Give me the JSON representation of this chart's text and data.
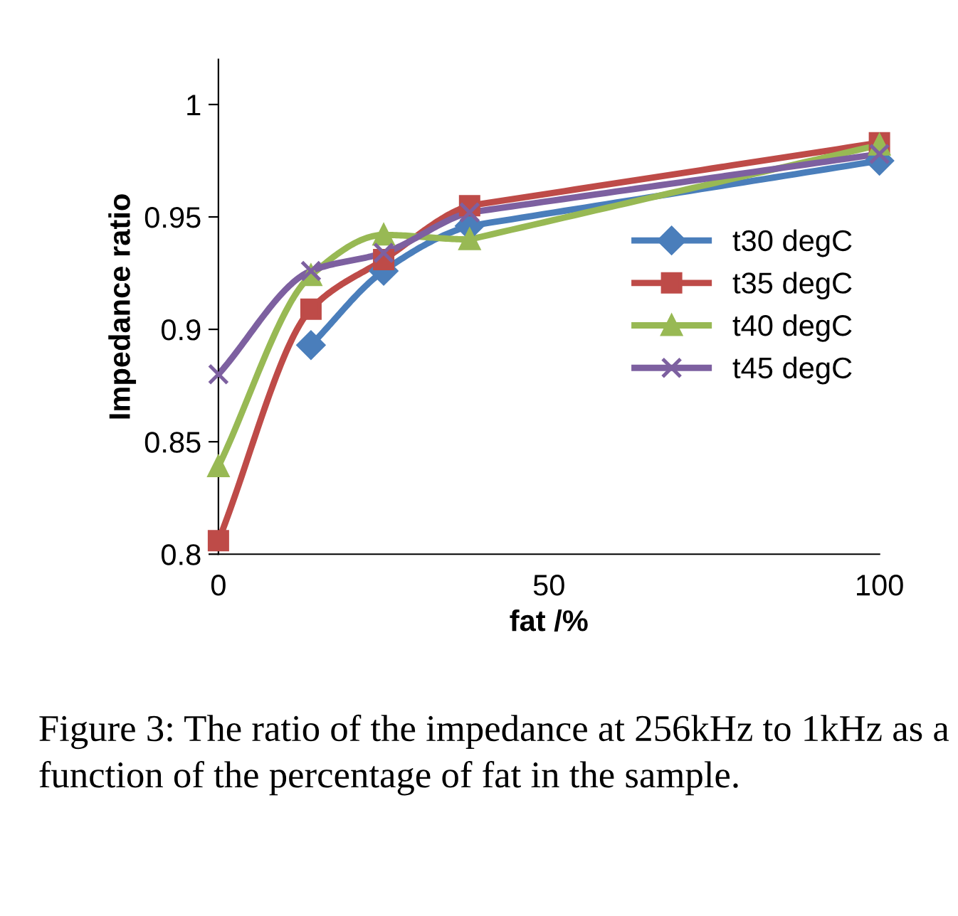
{
  "chart_data": {
    "type": "line",
    "xlabel": "fat /%",
    "ylabel": "Impedance ratio",
    "x": [
      0,
      14,
      25,
      38,
      100
    ],
    "series": [
      {
        "name": "t30 degC",
        "color": "#4a7ebb",
        "marker": "diamond",
        "values": [
          null,
          0.893,
          0.926,
          0.946,
          0.975
        ]
      },
      {
        "name": "t35 degC",
        "color": "#be4b48",
        "marker": "square",
        "values": [
          0.806,
          0.909,
          0.931,
          0.955,
          0.983
        ]
      },
      {
        "name": "t40 degC",
        "color": "#98b954",
        "marker": "triangle",
        "values": [
          0.839,
          0.924,
          0.942,
          0.94,
          0.982
        ]
      },
      {
        "name": "t45 degC",
        "color": "#7d60a0",
        "marker": "cross",
        "values": [
          0.88,
          0.926,
          0.934,
          0.952,
          0.978
        ]
      }
    ],
    "xlim": [
      0,
      100
    ],
    "xticks": [
      0,
      50,
      100
    ],
    "ylim": [
      0.8,
      1.02
    ],
    "yticks": [
      0.8,
      0.85,
      0.9,
      0.95,
      1
    ],
    "grid": false,
    "legend": "center right",
    "annotations": [
      "Figure 3: The ratio of the impedance at 256kHz to 1kHz as a function of the percentage of fat in the sample."
    ]
  }
}
